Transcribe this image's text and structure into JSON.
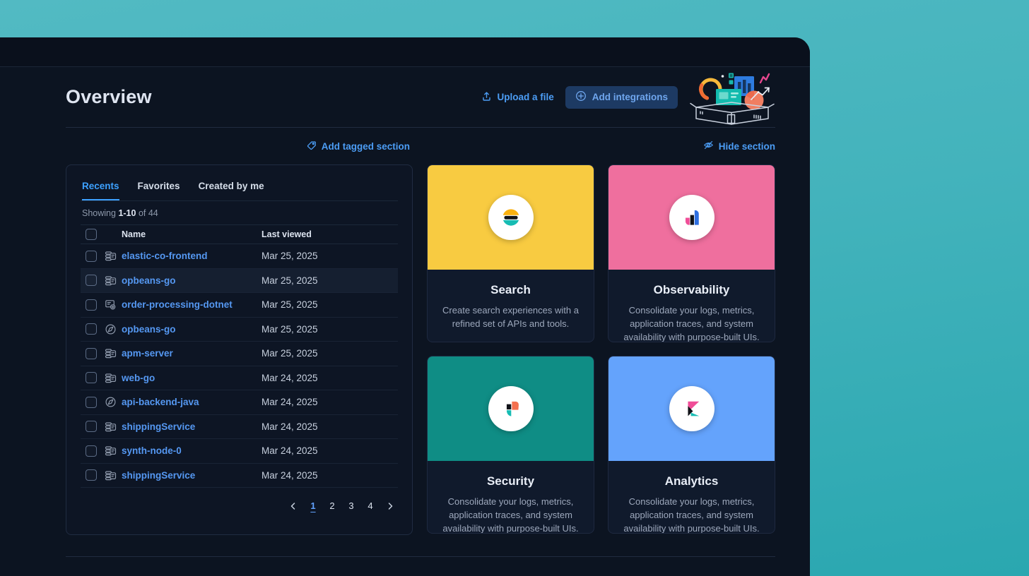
{
  "page": {
    "title": "Overview"
  },
  "header": {
    "upload_label": "Upload a file",
    "add_integrations_label": "Add integrations"
  },
  "section": {
    "add_tagged_label": "Add tagged section",
    "hide_label": "Hide section"
  },
  "panel": {
    "tabs": [
      {
        "label": "Recents",
        "active": true
      },
      {
        "label": "Favorites",
        "active": false
      },
      {
        "label": "Created by me",
        "active": false
      }
    ],
    "showing": {
      "prefix": "Showing",
      "range": "1-10",
      "suffix": "of 44"
    },
    "columns": {
      "name": "Name",
      "last_viewed": "Last viewed"
    },
    "rows": [
      {
        "icon": "dashboard",
        "name": "elastic-co-frontend",
        "last_viewed": "Mar 25, 2025",
        "highlighted": false
      },
      {
        "icon": "dashboard",
        "name": "opbeans-go",
        "last_viewed": "Mar 25, 2025",
        "highlighted": true
      },
      {
        "icon": "canvas",
        "name": "order-processing-dotnet",
        "last_viewed": "Mar 25, 2025",
        "highlighted": false
      },
      {
        "icon": "compass",
        "name": "opbeans-go",
        "last_viewed": "Mar 25, 2025",
        "highlighted": false
      },
      {
        "icon": "dashboard",
        "name": "apm-server",
        "last_viewed": "Mar 25, 2025",
        "highlighted": false
      },
      {
        "icon": "dashboard",
        "name": "web-go",
        "last_viewed": "Mar 24, 2025",
        "highlighted": false
      },
      {
        "icon": "compass",
        "name": "api-backend-java",
        "last_viewed": "Mar 24, 2025",
        "highlighted": false
      },
      {
        "icon": "dashboard",
        "name": "shippingService",
        "last_viewed": "Mar 24, 2025",
        "highlighted": false
      },
      {
        "icon": "dashboard",
        "name": "synth-node-0",
        "last_viewed": "Mar 24, 2025",
        "highlighted": false
      },
      {
        "icon": "dashboard",
        "name": "shippingService",
        "last_viewed": "Mar 24, 2025",
        "highlighted": false
      }
    ],
    "pagination": {
      "pages": [
        "1",
        "2",
        "3",
        "4"
      ],
      "active": "1"
    }
  },
  "cards": [
    {
      "logo": "search",
      "color": "#F8CB41",
      "title": "Search",
      "description": "Create search experiences with a refined set of APIs and tools."
    },
    {
      "logo": "observability",
      "color": "#EF6F9E",
      "title": "Observability",
      "description": "Consolidate your logs, metrics, application traces, and system availability with purpose-built UIs."
    },
    {
      "logo": "security",
      "color": "#0F8D85",
      "title": "Security",
      "description": "Consolidate your logs, metrics, application traces, and system availability with purpose-built UIs."
    },
    {
      "logo": "analytics",
      "color": "#64A3FC",
      "title": "Analytics",
      "description": "Consolidate your logs, metrics, application traces, and system availability with purpose-built UIs."
    }
  ],
  "colors": {
    "teal_background": "#43B3BC",
    "app_background": "#0C1421",
    "accent_blue": "#4C9DF5",
    "tab_blue": "#3DA1FF"
  }
}
